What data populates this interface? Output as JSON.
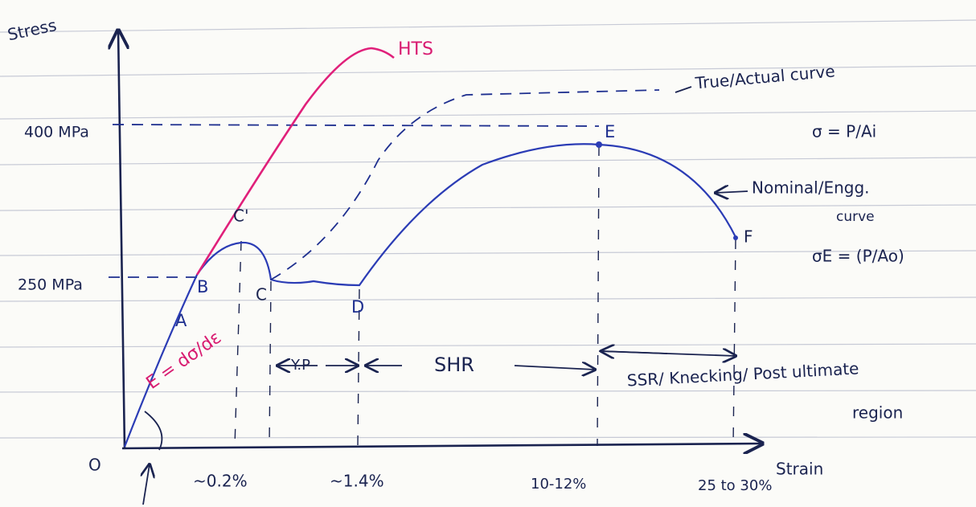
{
  "axes": {
    "y_label": "Stress",
    "x_label": "Strain",
    "origin": "O"
  },
  "stress_levels": [
    "400 MPa",
    "250 MPa"
  ],
  "strain_marks": [
    "~0.2%",
    "~1.4%",
    "10-12%",
    "25 to 30%"
  ],
  "points": {
    "A": "A",
    "B": "B",
    "C_prime": "C'",
    "C": "C",
    "D": "D",
    "E": "E",
    "F": "F"
  },
  "curves": {
    "hts": "HTS",
    "true_curve": "True/Actual curve",
    "true_formula": "σ = P/Ai",
    "nominal_curve": "Nominal/Engg.",
    "nominal_curve_2": "curve",
    "nominal_formula": "σE = (P/Ao)"
  },
  "modulus": "E = dσ/dε",
  "regions": {
    "yield": "Y.P",
    "hardening": "SHR",
    "necking": "SSR/ Knecking/ Post ultimate",
    "necking_2": "region"
  }
}
